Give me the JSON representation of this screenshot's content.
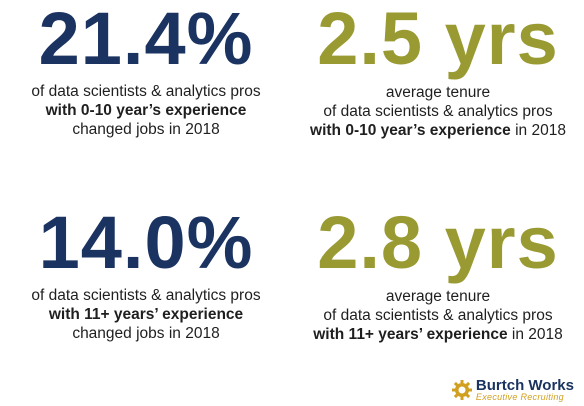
{
  "stats": [
    {
      "value": "21.4%",
      "line1": "of data scientists & analytics pros",
      "line2": "with 0-10 year’s experience",
      "line3": "changed jobs in 2018"
    },
    {
      "value": "2.5 yrs",
      "line1": "average tenure",
      "line2": "of data scientists & analytics pros",
      "line3_bold": "with 0-10 year’s experience",
      "line3_rest": " in 2018"
    },
    {
      "value": "14.0%",
      "line1": "of data scientists & analytics pros",
      "line2": "with 11+ years’ experience",
      "line3": "changed jobs in 2018"
    },
    {
      "value": "2.8 yrs",
      "line1": "average tenure",
      "line2": "of data scientists & analytics pros",
      "line3_bold": "with 11+ years’ experience",
      "line3_rest": " in 2018"
    }
  ],
  "logo": {
    "name": "Burtch Works",
    "tagline": "Executive Recruiting",
    "icon": "gear-icon"
  },
  "colors": {
    "navy": "#1b3360",
    "olive": "#9a9a33",
    "gold": "#d2a020"
  }
}
